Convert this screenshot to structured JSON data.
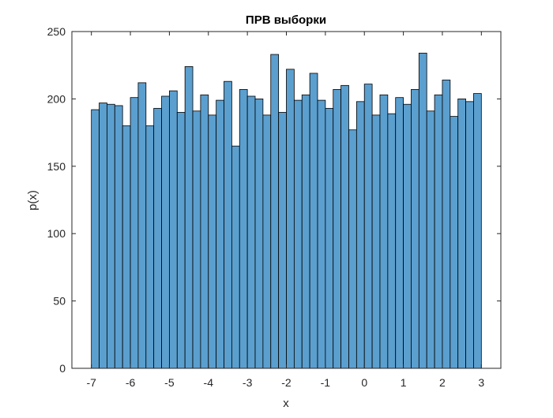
{
  "chart_data": {
    "type": "histogram",
    "title": "ПРВ выборки",
    "xlabel": "x",
    "ylabel": "p(x)",
    "bins": [
      -7,
      -6.8,
      -6.6,
      -6.4,
      -6.2,
      -6,
      -5.8,
      -5.6,
      -5.4,
      -5.2,
      -5,
      -4.8,
      -4.6,
      -4.4,
      -4.2,
      -4,
      -3.8,
      -3.6,
      -3.4,
      -3.2,
      -3,
      -2.8,
      -2.6,
      -2.4,
      -2.2,
      -2,
      -1.8,
      -1.6,
      -1.4,
      -1.2,
      -1,
      -0.8,
      -0.6,
      -0.4,
      -0.2,
      0,
      0.2,
      0.4,
      0.6,
      0.8,
      1,
      1.2,
      1.4,
      1.6,
      1.8,
      2,
      2.2,
      2.4,
      2.6,
      2.8,
      3
    ],
    "counts": [
      192,
      197,
      196,
      195,
      180,
      201,
      212,
      180,
      193,
      202,
      206,
      190,
      224,
      191,
      203,
      188,
      199,
      213,
      165,
      207,
      202,
      200,
      188,
      233,
      190,
      222,
      199,
      203,
      219,
      199,
      193,
      207,
      210,
      177,
      198,
      211,
      188,
      203,
      189,
      201,
      196,
      207,
      234,
      191,
      203,
      214,
      187,
      200,
      198,
      204
    ],
    "color": "#5b9fcf",
    "xlim": [
      -7.5,
      3.5
    ],
    "xticks": [
      -7,
      -6,
      -5,
      -4,
      -3,
      -2,
      -1,
      0,
      1,
      2,
      3
    ],
    "ylim": [
      0,
      250
    ],
    "yticks": [
      0,
      50,
      100,
      150,
      200,
      250
    ]
  }
}
